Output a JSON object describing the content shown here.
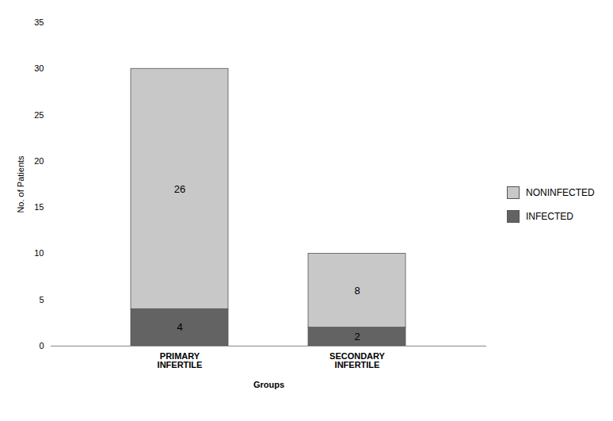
{
  "chart_data": {
    "type": "bar",
    "stacked": true,
    "categories": [
      "PRIMARY\nINFERTILE",
      "SECONDARY\nINFERTILE"
    ],
    "series": [
      {
        "name": "INFECTED",
        "color": "#636363",
        "values": [
          4,
          2
        ]
      },
      {
        "name": "NONINFECTED",
        "color": "#c8c8c8",
        "values": [
          26,
          8
        ]
      }
    ],
    "xlabel": "Groups",
    "ylabel": "No. of Patients",
    "ylim": [
      0,
      35
    ],
    "yticks": [
      0,
      5,
      10,
      15,
      20,
      25,
      30,
      35
    ],
    "data_labels": true,
    "grid": false,
    "legend": "right"
  }
}
